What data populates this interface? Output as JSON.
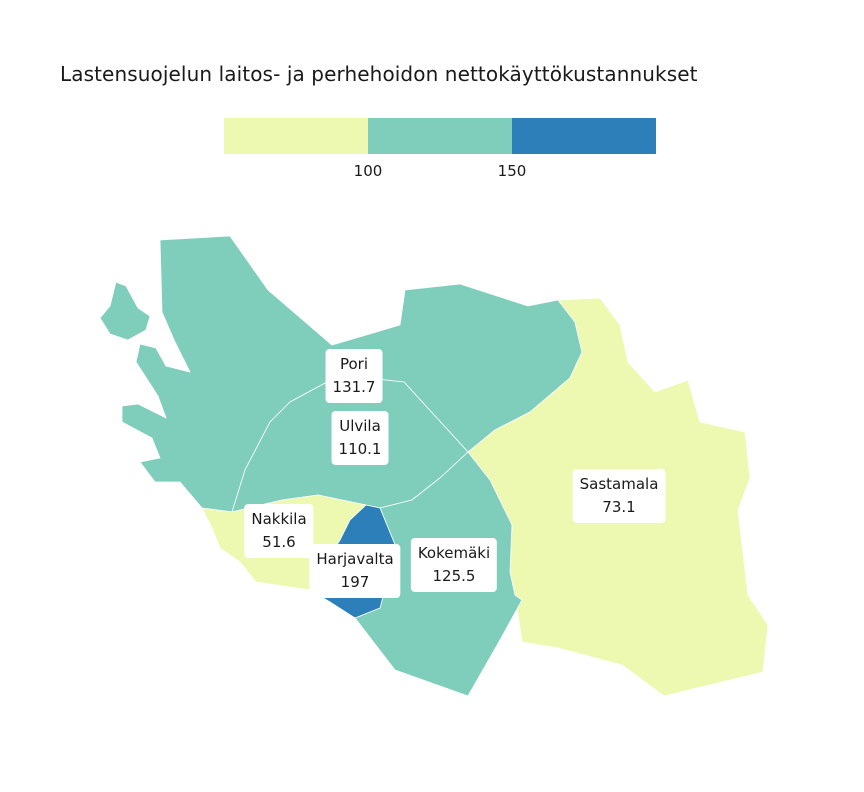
{
  "title": "Lastensuojelun laitos- ja perhehoidon nettokäyttökustannukset",
  "legend": {
    "colors": [
      "#edf8b1",
      "#7fcdbb",
      "#2c7fb8"
    ],
    "breaks": [
      "100",
      "150"
    ]
  },
  "regions": [
    {
      "name": "Pori",
      "value": "131.7",
      "color": "#7fcdbb"
    },
    {
      "name": "Ulvila",
      "value": "110.1",
      "color": "#7fcdbb"
    },
    {
      "name": "Sastamala",
      "value": "73.1",
      "color": "#edf8b1"
    },
    {
      "name": "Nakkila",
      "value": "51.6",
      "color": "#edf8b1"
    },
    {
      "name": "Harjavalta",
      "value": "197",
      "color": "#2c7fb8"
    },
    {
      "name": "Kokemäki",
      "value": "125.5",
      "color": "#7fcdbb"
    }
  ]
}
